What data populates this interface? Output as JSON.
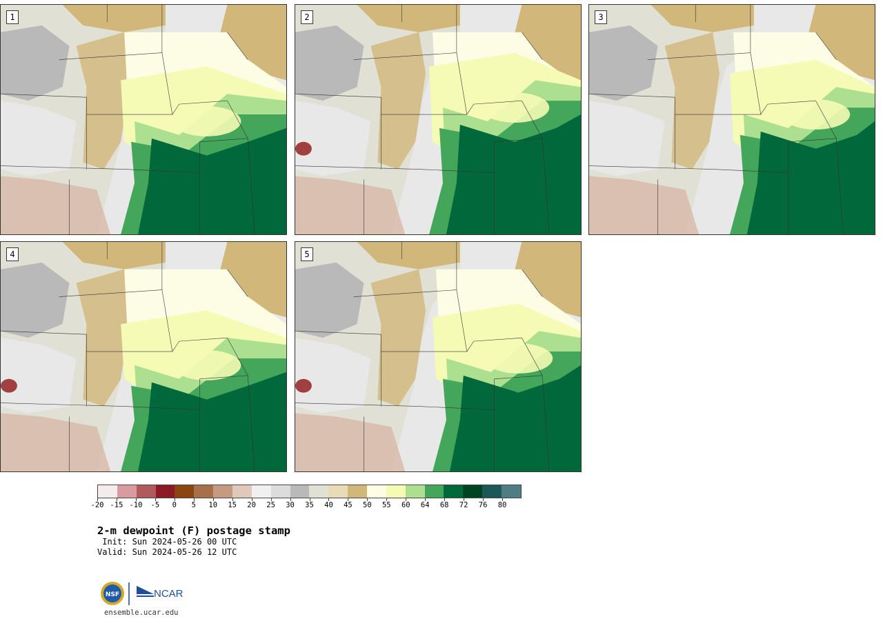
{
  "product": {
    "title": "2-m dewpoint (F) postage stamp",
    "init_line": " Init: Sun 2024-05-26 00 UTC",
    "valid_line": "Valid: Sun 2024-05-26 12 UTC"
  },
  "panels": [
    {
      "label": "1"
    },
    {
      "label": "2"
    },
    {
      "label": "3"
    },
    {
      "label": "4"
    },
    {
      "label": "5"
    }
  ],
  "colorbar": {
    "colors": [
      "#f4ecec",
      "#d99aa0",
      "#b05a5e",
      "#8b1a24",
      "#8b4513",
      "#a8704a",
      "#c49a82",
      "#e0c8ba",
      "#f0f0f0",
      "#dcdcdc",
      "#b9b9b9",
      "#e0e0d4",
      "#e8dcb8",
      "#d2b77a",
      "#fdfde6",
      "#f5fbb4",
      "#acdf90",
      "#43a65a",
      "#00683a",
      "#004322",
      "#1d5858",
      "#507d84"
    ],
    "tick_labels": [
      "-20",
      "-15",
      "-10",
      "-5",
      "0",
      "5",
      "10",
      "15",
      "20",
      "25",
      "30",
      "35",
      "40",
      "45",
      "50",
      "55",
      "60",
      "64",
      "68",
      "72",
      "76",
      "80"
    ]
  },
  "map_colors": {
    "very_humid": "#00683a",
    "humid": "#43a65a",
    "moist": "#acdf90",
    "pale": "#f5fbb4",
    "cream": "#fdfde6",
    "tan": "#d2b77a",
    "light_tan": "#e0e0d4",
    "gray": "#b9b9b9",
    "light_gray": "#e8e8e8",
    "dry_brown": "#d8b8a8",
    "very_dry": "#a04040",
    "border": "#333333"
  },
  "footer": {
    "nsf_logo_text": "NSF",
    "ncar_logo_text": "NCAR",
    "url": "ensemble.ucar.edu"
  }
}
